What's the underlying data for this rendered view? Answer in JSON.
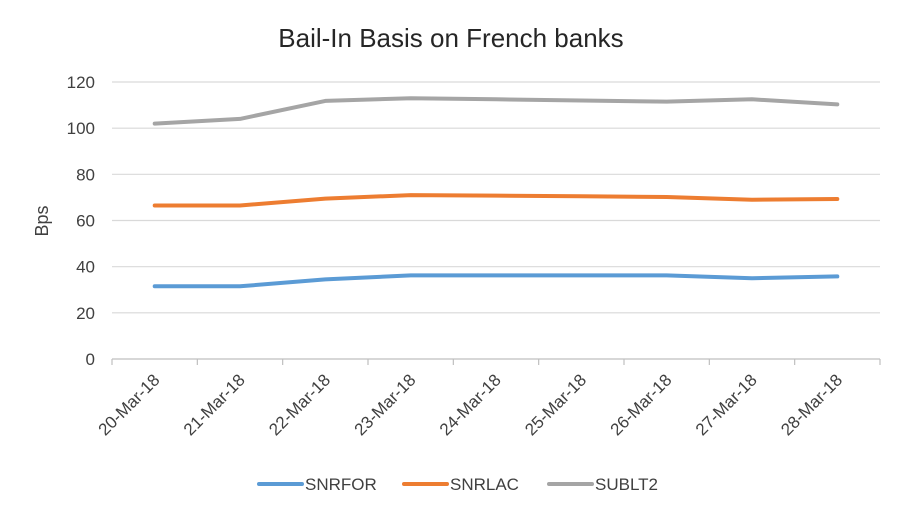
{
  "chart_data": {
    "type": "line",
    "title": "Bail-In Basis on French banks",
    "xlabel": "",
    "ylabel": "Bps",
    "ylim": [
      0,
      120
    ],
    "yticks": [
      0,
      20,
      40,
      60,
      80,
      100,
      120
    ],
    "grid": true,
    "legend": "bottom",
    "categories": [
      "20-Mar-18",
      "21-Mar-18",
      "22-Mar-18",
      "23-Mar-18",
      "24-Mar-18",
      "25-Mar-18",
      "26-Mar-18",
      "27-Mar-18",
      "28-Mar-18"
    ],
    "series": [
      {
        "name": "SNRFOR",
        "color": "#5b9bd5",
        "values": [
          31.5,
          31.5,
          34.5,
          36.2,
          36.2,
          36.2,
          36.2,
          35.0,
          35.8
        ]
      },
      {
        "name": "SNRLAC",
        "color": "#ed7d31",
        "values": [
          66.5,
          66.5,
          69.5,
          71.0,
          70.8,
          70.5,
          70.2,
          69.0,
          69.3
        ]
      },
      {
        "name": "SUBLT2",
        "color": "#a5a5a5",
        "values": [
          102.0,
          104.0,
          111.8,
          113.0,
          112.5,
          112.0,
          111.5,
          112.5,
          110.3
        ]
      }
    ]
  }
}
